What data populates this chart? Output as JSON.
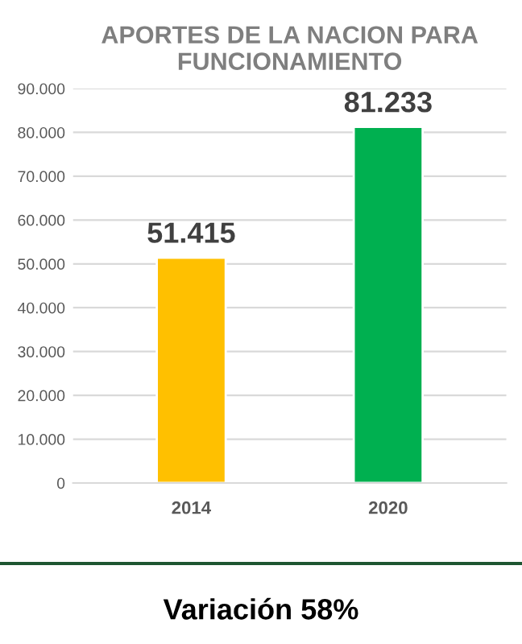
{
  "chart_data": {
    "type": "bar",
    "title": "APORTES DE LA NACION PARA FUNCIONAMIENTO",
    "categories": [
      "2014",
      "2020"
    ],
    "values": [
      51415,
      81233
    ],
    "colors": [
      "#ffc000",
      "#00b050"
    ],
    "value_labels": [
      "51.415",
      "81.233"
    ],
    "ylim": [
      0,
      90000
    ],
    "yticks": [
      {
        "value": 0,
        "label": "0"
      },
      {
        "value": 10000,
        "label": "10.000"
      },
      {
        "value": 20000,
        "label": "20.000"
      },
      {
        "value": 30000,
        "label": "30.000"
      },
      {
        "value": 40000,
        "label": "40.000"
      },
      {
        "value": 50000,
        "label": "50.000"
      },
      {
        "value": 60000,
        "label": "60.000"
      },
      {
        "value": 70000,
        "label": "70.000"
      },
      {
        "value": 80000,
        "label": "80.000"
      },
      {
        "value": 90000,
        "label": "90.000"
      }
    ],
    "grid": "y",
    "annotations": [
      "Variación 58%"
    ]
  }
}
